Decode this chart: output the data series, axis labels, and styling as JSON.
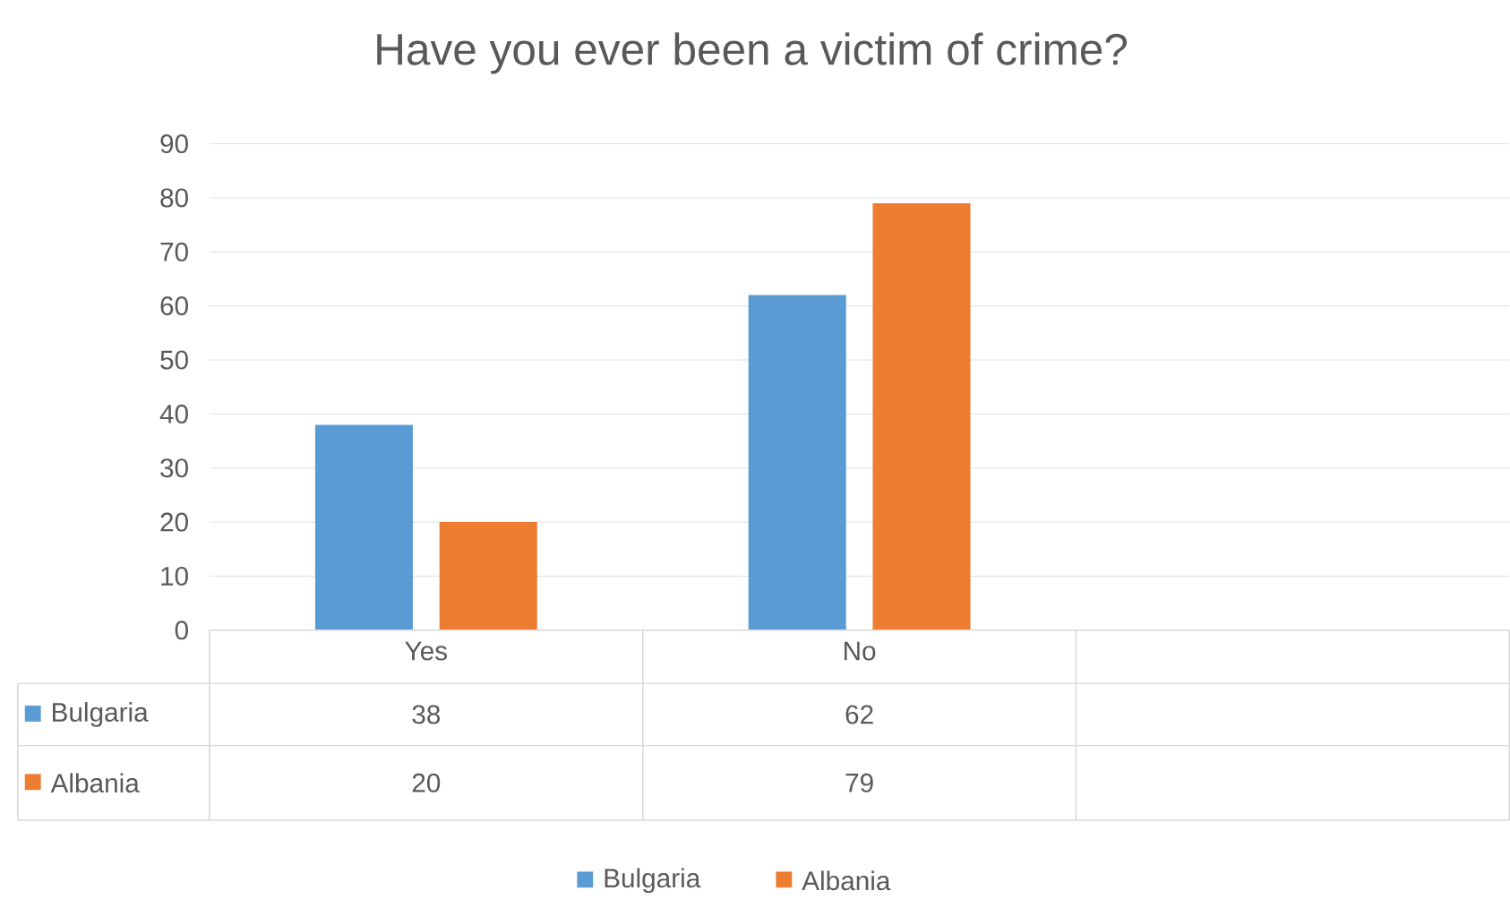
{
  "chart_data": {
    "type": "bar",
    "title": "Have you ever been a victim of crime?",
    "categories": [
      "Yes",
      "No",
      null
    ],
    "series": [
      {
        "name": "Bulgaria",
        "color": "#5b9bd5",
        "values": [
          38,
          62,
          null
        ]
      },
      {
        "name": "Albania",
        "color": "#ed7d31",
        "values": [
          20,
          79,
          null
        ]
      }
    ],
    "ylim": [
      0,
      90
    ],
    "yticks": [
      0,
      10,
      20,
      30,
      40,
      50,
      60,
      70,
      80,
      90
    ],
    "grid": "y",
    "legend": "bottom",
    "data_labels": true
  }
}
